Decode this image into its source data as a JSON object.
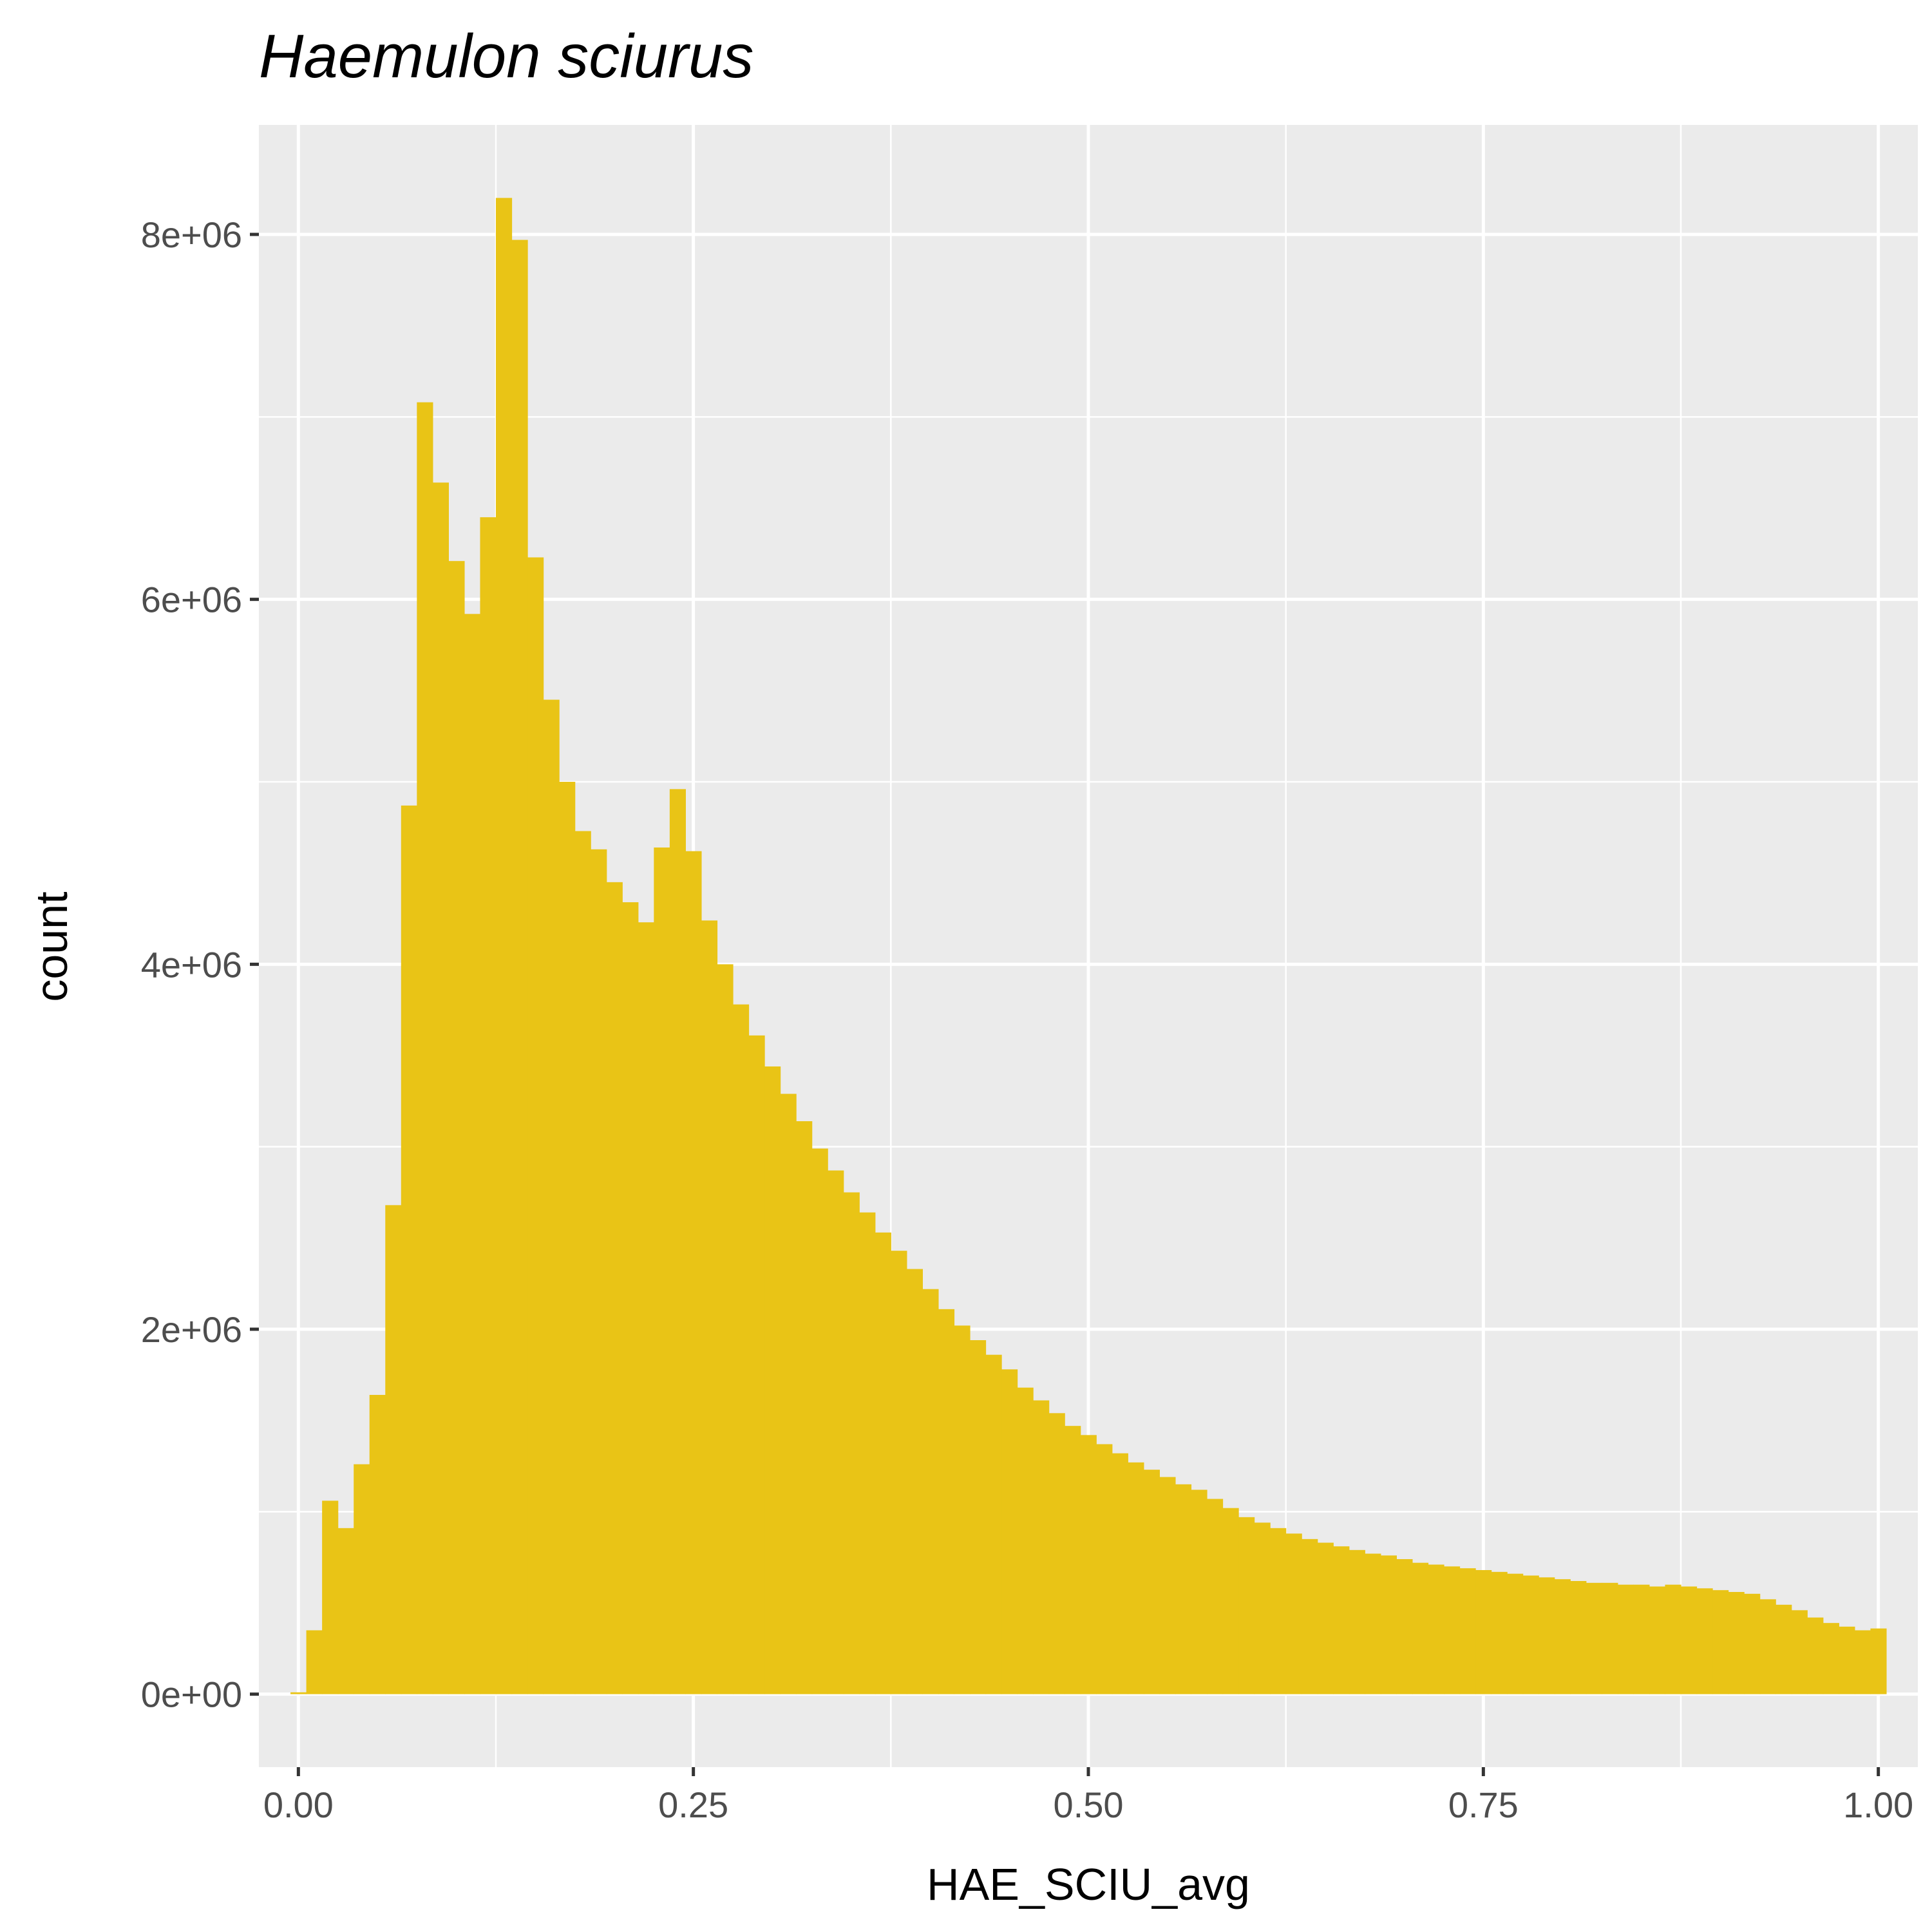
{
  "chart_data": {
    "type": "bar",
    "title": "Haemulon sciurus",
    "xlabel": "HAE_SCIU_avg",
    "ylabel": "count",
    "bar_color": "#E9C416",
    "panel_background": "#EBEBEB",
    "grid": true,
    "xlim": [
      -0.025,
      1.025
    ],
    "ylim": [
      -400000,
      8600000
    ],
    "x_ticks": [
      {
        "value": 0.0,
        "label": "0.00"
      },
      {
        "value": 0.25,
        "label": "0.25"
      },
      {
        "value": 0.5,
        "label": "0.50"
      },
      {
        "value": 0.75,
        "label": "0.75"
      },
      {
        "value": 1.0,
        "label": "1.00"
      }
    ],
    "y_ticks": [
      {
        "value": 0,
        "label": "0e+00"
      },
      {
        "value": 2000000,
        "label": "2e+06"
      },
      {
        "value": 4000000,
        "label": "4e+06"
      },
      {
        "value": 6000000,
        "label": "6e+06"
      },
      {
        "value": 8000000,
        "label": "8e+06"
      }
    ],
    "bin_width": 0.01,
    "x": [
      0.0,
      0.01,
      0.02,
      0.03,
      0.04,
      0.05,
      0.06,
      0.07,
      0.08,
      0.09,
      0.1,
      0.11,
      0.12,
      0.13,
      0.14,
      0.15,
      0.16,
      0.17,
      0.18,
      0.19,
      0.2,
      0.21,
      0.22,
      0.23,
      0.24,
      0.25,
      0.26,
      0.27,
      0.28,
      0.29,
      0.3,
      0.31,
      0.32,
      0.33,
      0.34,
      0.35,
      0.36,
      0.37,
      0.38,
      0.39,
      0.4,
      0.41,
      0.42,
      0.43,
      0.44,
      0.45,
      0.46,
      0.47,
      0.48,
      0.49,
      0.5,
      0.51,
      0.52,
      0.53,
      0.54,
      0.55,
      0.56,
      0.57,
      0.58,
      0.59,
      0.6,
      0.61,
      0.62,
      0.63,
      0.64,
      0.65,
      0.66,
      0.67,
      0.68,
      0.69,
      0.7,
      0.71,
      0.72,
      0.73,
      0.74,
      0.75,
      0.76,
      0.77,
      0.78,
      0.79,
      0.8,
      0.81,
      0.82,
      0.83,
      0.84,
      0.85,
      0.86,
      0.87,
      0.88,
      0.89,
      0.9,
      0.91,
      0.92,
      0.93,
      0.94,
      0.95,
      0.96,
      0.97,
      0.98,
      0.99,
      1.0
    ],
    "values": [
      10000,
      350000,
      1060000,
      910000,
      1260000,
      1640000,
      2680000,
      4870000,
      7080000,
      6640000,
      6210000,
      5920000,
      6450000,
      8200000,
      7970000,
      6230000,
      5450000,
      5000000,
      4730000,
      4630000,
      4450000,
      4340000,
      4230000,
      4640000,
      4960000,
      4620000,
      4240000,
      4000000,
      3780000,
      3610000,
      3440000,
      3290000,
      3140000,
      2990000,
      2870000,
      2750000,
      2640000,
      2530000,
      2430000,
      2330000,
      2220000,
      2110000,
      2020000,
      1940000,
      1860000,
      1780000,
      1680000,
      1610000,
      1540000,
      1470000,
      1420000,
      1370000,
      1320000,
      1270000,
      1230000,
      1190000,
      1150000,
      1120000,
      1070000,
      1020000,
      970000,
      940000,
      910000,
      880000,
      850000,
      830000,
      810000,
      790000,
      770000,
      760000,
      740000,
      720000,
      710000,
      700000,
      690000,
      680000,
      670000,
      660000,
      650000,
      640000,
      630000,
      620000,
      610000,
      610000,
      600000,
      600000,
      590000,
      600000,
      590000,
      580000,
      570000,
      560000,
      550000,
      520000,
      490000,
      460000,
      420000,
      390000,
      370000,
      350000,
      360000
    ]
  }
}
